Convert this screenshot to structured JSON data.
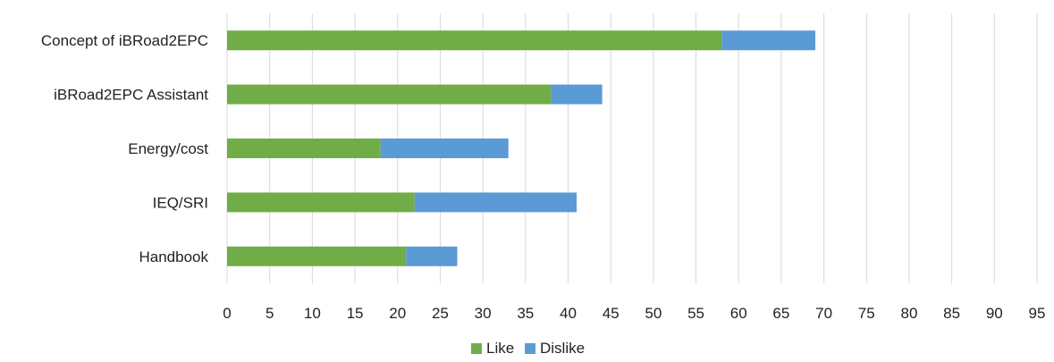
{
  "chart_data": {
    "type": "bar",
    "orientation": "horizontal",
    "stacked": true,
    "categories": [
      "Concept of iBRoad2EPC",
      "iBRoad2EPC Assistant",
      "Energy/cost",
      "IEQ/SRI",
      "Handbook"
    ],
    "series": [
      {
        "name": "Like",
        "color": "#70ad47",
        "values": [
          58,
          38,
          18,
          22,
          21
        ]
      },
      {
        "name": "Dislike",
        "color": "#5b9bd5",
        "values": [
          11,
          6,
          15,
          19,
          6
        ]
      }
    ],
    "x_ticks": [
      "0",
      "5",
      "10",
      "15",
      "20",
      "25",
      "30",
      "35",
      "40",
      "45",
      "50",
      "55",
      "60",
      "65",
      "70",
      "75",
      "80",
      "85",
      "90",
      "95"
    ],
    "xlim": [
      0,
      95
    ],
    "grid": "vertical",
    "legend_position": "bottom"
  }
}
